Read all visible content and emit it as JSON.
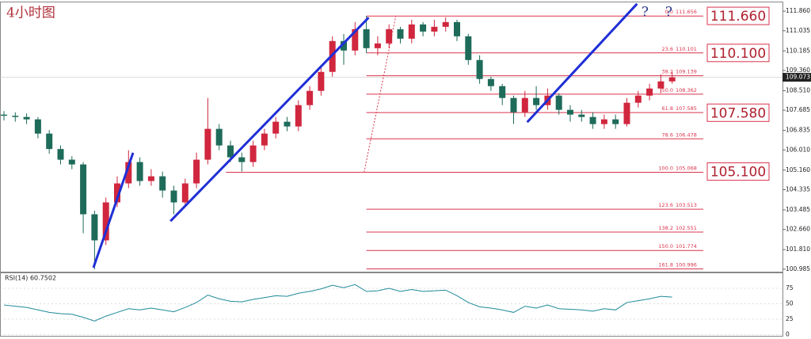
{
  "chart_data": {
    "type": "candlestick",
    "title": "4小时图",
    "up_color": "#d0263e",
    "down_color": "#1e6b5a",
    "trend_color": "#1f2fd6",
    "fib_color": "#d9344c",
    "ylim": [
      100.88,
      112.23
    ],
    "yticks": [
      {
        "value": 111.86,
        "label": "111.860"
      },
      111.035,
      110.185,
      {
        "value": 109.36,
        "label": "109.360"
      },
      {
        "value": 108.51,
        "label": "108.510"
      },
      107.685,
      106.835,
      {
        "value": 106.01,
        "label": "106.010"
      },
      {
        "value": 105.16,
        "label": "105.160"
      },
      104.335,
      103.485,
      {
        "value": 102.66,
        "label": "102.660"
      },
      {
        "value": 101.81,
        "label": "101.810"
      },
      100.985
    ],
    "last_price": 109.073,
    "candles": {
      "open": [
        107.5,
        107.45,
        107.4,
        107.3,
        106.7,
        106.05,
        105.6,
        105.4,
        103.3,
        102.2,
        103.8,
        104.6,
        105.5,
        104.7,
        104.9,
        104.3,
        103.8,
        104.6,
        105.6,
        106.9,
        106.2,
        105.7,
        105.5,
        106.2,
        106.7,
        107.2,
        107.0,
        107.9,
        108.5,
        109.3,
        110.6,
        110.2,
        111.1,
        110.3,
        110.5,
        111.1,
        110.7,
        111.3,
        111.0,
        111.2,
        111.4,
        110.8,
        109.8,
        109.0,
        108.7,
        108.2,
        107.6,
        108.2,
        107.9,
        108.3,
        107.7,
        107.5,
        107.4,
        107.1,
        107.3,
        107.1,
        108.0,
        108.3,
        108.6,
        108.9
      ],
      "high": [
        107.65,
        107.6,
        107.55,
        107.4,
        106.85,
        106.2,
        105.75,
        105.5,
        103.45,
        104.0,
        104.9,
        106.0,
        105.7,
        105.2,
        105.1,
        104.5,
        104.8,
        105.9,
        108.2,
        107.1,
        106.4,
        105.9,
        106.4,
        106.9,
        107.4,
        107.4,
        108.1,
        108.7,
        109.5,
        110.8,
        110.9,
        111.4,
        111.66,
        110.8,
        111.3,
        111.2,
        111.5,
        111.4,
        111.5,
        111.6,
        111.5,
        110.9,
        110.0,
        109.1,
        108.8,
        108.3,
        108.5,
        108.7,
        108.6,
        108.4,
        107.9,
        107.7,
        107.6,
        107.5,
        107.5,
        108.2,
        108.5,
        108.8,
        109.2,
        109.3
      ],
      "low": [
        107.25,
        107.2,
        107.1,
        106.5,
        105.85,
        105.4,
        105.2,
        102.5,
        100.98,
        102.0,
        103.6,
        104.4,
        104.5,
        104.5,
        104.0,
        103.3,
        103.6,
        104.4,
        105.4,
        106.0,
        105.5,
        105.1,
        105.3,
        106.0,
        106.5,
        106.8,
        106.8,
        107.7,
        108.3,
        109.1,
        109.6,
        110.0,
        110.1,
        110.0,
        110.3,
        110.5,
        110.5,
        110.8,
        110.8,
        111.0,
        110.6,
        109.6,
        108.8,
        108.5,
        107.9,
        107.1,
        107.4,
        107.7,
        107.7,
        107.5,
        107.2,
        107.2,
        106.9,
        106.9,
        106.9,
        107.0,
        107.8,
        108.1,
        108.4,
        108.8
      ],
      "close": [
        107.45,
        107.4,
        107.3,
        106.7,
        106.05,
        105.6,
        105.4,
        103.3,
        102.2,
        103.8,
        104.6,
        105.5,
        104.7,
        104.9,
        104.3,
        103.8,
        104.6,
        105.6,
        106.9,
        106.2,
        105.7,
        105.5,
        106.2,
        106.7,
        107.2,
        107.0,
        107.9,
        108.5,
        109.3,
        110.6,
        110.2,
        111.1,
        110.3,
        110.5,
        111.1,
        110.7,
        111.3,
        111.0,
        111.2,
        111.4,
        110.8,
        109.8,
        109.0,
        108.7,
        108.2,
        107.6,
        108.2,
        107.9,
        108.3,
        107.7,
        107.5,
        107.4,
        107.1,
        107.3,
        107.1,
        108.0,
        108.3,
        108.6,
        108.9,
        109.07
      ]
    },
    "fib_levels": [
      {
        "ratio": "0.0",
        "price": 111.656,
        "start": 32
      },
      {
        "ratio": "23.6",
        "price": 110.101,
        "start": 32
      },
      {
        "ratio": "38.2",
        "price": 109.139,
        "start": 32
      },
      {
        "ratio": "50.0",
        "price": 108.362,
        "start": 32
      },
      {
        "ratio": "61.8",
        "price": 107.585,
        "start": 32
      },
      {
        "ratio": "78.6",
        "price": 106.478,
        "start": 32
      },
      {
        "ratio": "100.0",
        "price": 105.068,
        "start": 19.6
      },
      {
        "ratio": "123.6",
        "price": 103.513,
        "start": 32
      },
      {
        "ratio": "138.2",
        "price": 102.551,
        "start": 32
      },
      {
        "ratio": "150.0",
        "price": 101.774,
        "start": 32
      },
      {
        "ratio": "161.8",
        "price": 100.996,
        "start": 32
      }
    ],
    "fib_anchor_x": [
      31.8,
      34.6
    ],
    "level_boxes": [
      {
        "value": 111.66,
        "label": "111.660"
      },
      {
        "value": 110.1,
        "label": "110.100"
      },
      {
        "value": 107.58,
        "label": "107.580"
      },
      {
        "value": 105.1,
        "label": "105.100"
      }
    ],
    "trendlines": [
      {
        "x": [
          7.9,
          11.4
        ],
        "y": [
          101.05,
          105.89
        ]
      },
      {
        "x": [
          14.7,
          32.2
        ],
        "y": [
          103.01,
          111.59
        ]
      },
      {
        "x": [
          46.2,
          55.9
        ],
        "y": [
          107.18,
          112.17
        ]
      }
    ],
    "annotations": [
      {
        "text": "?",
        "x": 56.6,
        "y": 111.86
      },
      {
        "text": "?",
        "x": 58.7,
        "y": 111.86
      }
    ],
    "rsi": {
      "label": "RSI(14) 60.7502",
      "ylim": [
        0,
        100
      ],
      "yticks": [
        0,
        25,
        50,
        75
      ],
      "color": "#1f8a9a",
      "values": [
        48,
        46,
        44,
        40,
        36,
        34,
        33,
        28,
        22,
        30,
        36,
        42,
        40,
        43,
        40,
        37,
        44,
        52,
        64,
        58,
        54,
        53,
        57,
        60,
        63,
        62,
        67,
        70,
        74,
        80,
        76,
        81,
        70,
        71,
        75,
        70,
        73,
        70,
        71,
        72,
        63,
        52,
        45,
        43,
        40,
        36,
        46,
        43,
        48,
        42,
        41,
        40,
        38,
        42,
        40,
        52,
        55,
        58,
        62,
        60.75
      ]
    }
  }
}
